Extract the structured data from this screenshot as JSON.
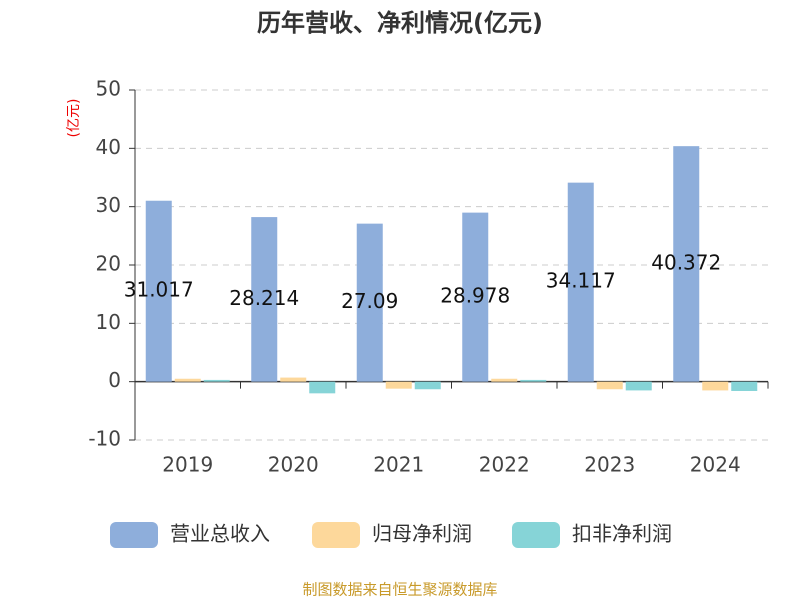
{
  "chart_data": {
    "type": "bar",
    "title": "历年营收、净利情况(亿元)",
    "y_label": "(亿元)",
    "source": "制图数据来自恒生聚源数据库",
    "categories": [
      "2019",
      "2020",
      "2021",
      "2022",
      "2023",
      "2024"
    ],
    "series": [
      {
        "name": "营业总收入",
        "color": "#8eaedb",
        "values": [
          31.017,
          28.214,
          27.09,
          28.978,
          34.117,
          40.372
        ]
      },
      {
        "name": "归母净利润",
        "color": "#fdd89b",
        "values": [
          0.5,
          0.7,
          -1.2,
          0.5,
          -1.3,
          -1.5
        ]
      },
      {
        "name": "扣非净利润",
        "color": "#86d4d7",
        "values": [
          0.3,
          -2.0,
          -1.3,
          0.3,
          -1.5,
          -1.6
        ]
      }
    ],
    "label_series": 0,
    "ylim": [
      -10,
      50
    ],
    "yticks": [
      -10,
      0,
      10,
      20,
      30,
      40,
      50
    ],
    "grid": true
  }
}
